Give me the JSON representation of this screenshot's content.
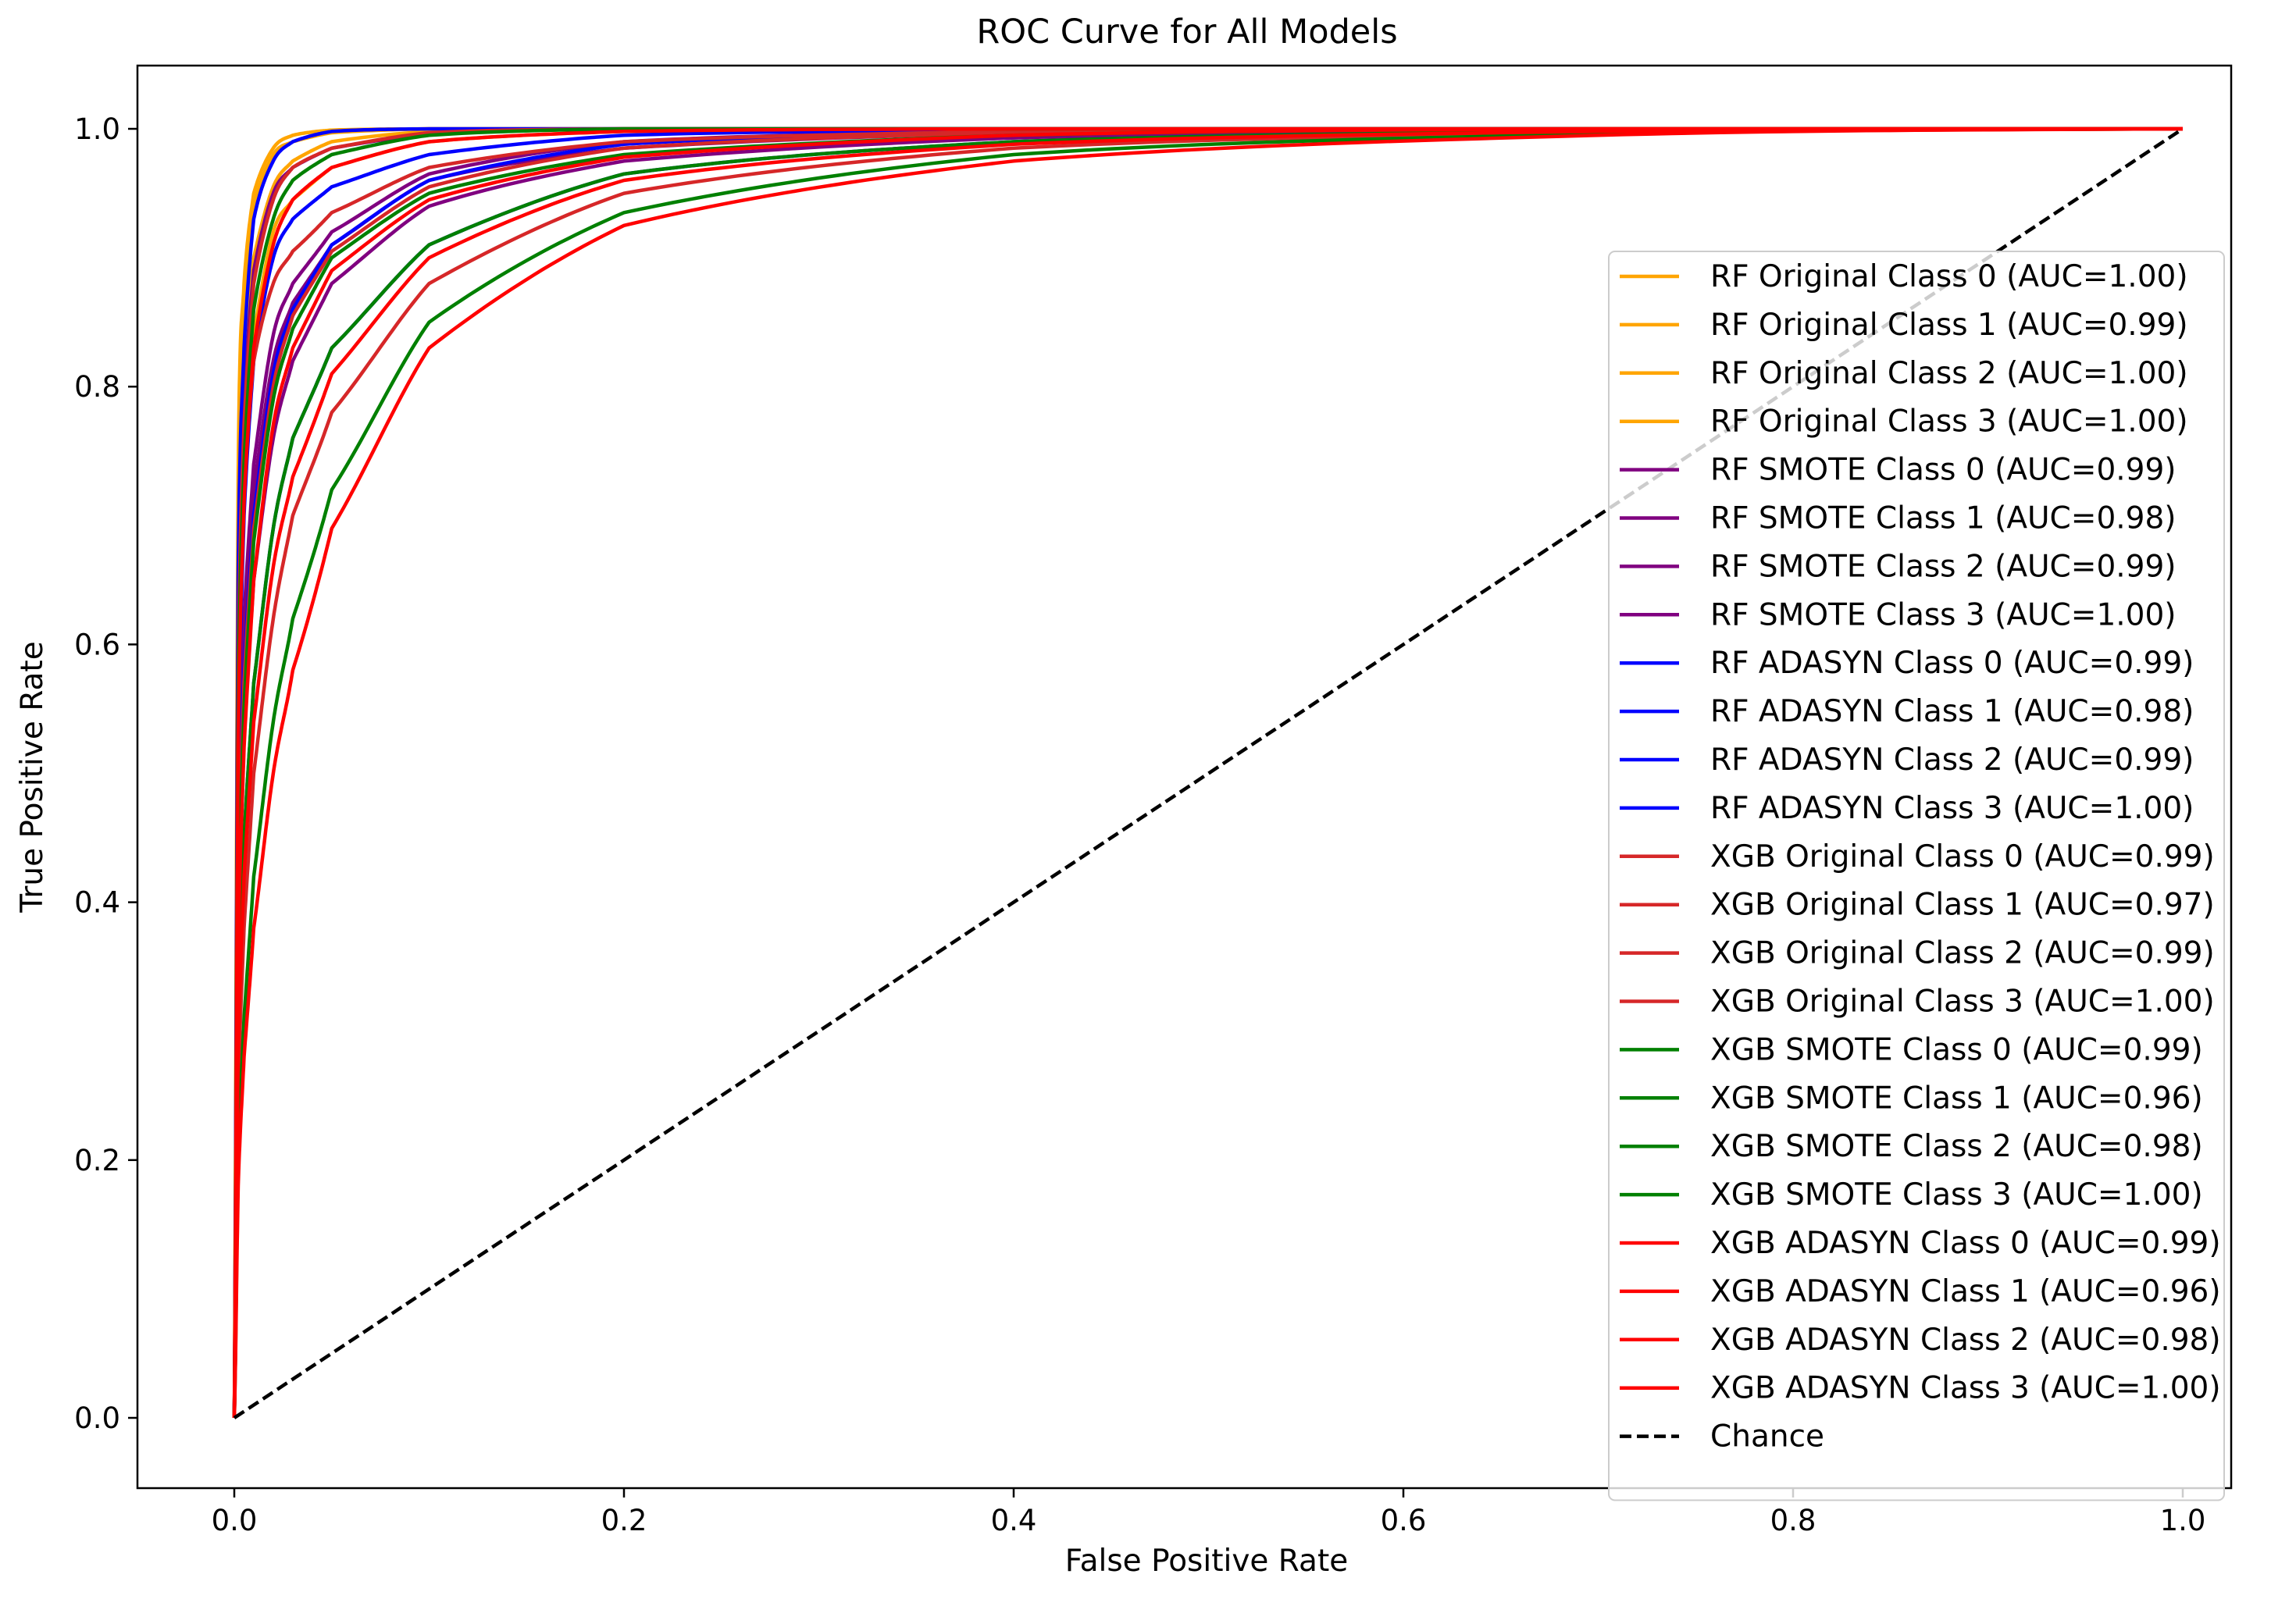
{
  "chart_data": {
    "type": "line",
    "title": "ROC Curve for All Models",
    "xlabel": "False Positive Rate",
    "ylabel": "True Positive Rate",
    "xlim": [
      -0.05,
      1.05
    ],
    "ylim": [
      -0.05,
      1.05
    ],
    "xticks": [
      0.0,
      0.2,
      0.4,
      0.6,
      0.8,
      1.0
    ],
    "yticks": [
      0.0,
      0.2,
      0.4,
      0.6,
      0.8,
      1.0
    ],
    "xtick_labels": [
      "0.0",
      "0.2",
      "0.4",
      "0.6",
      "0.8",
      "1.0"
    ],
    "ytick_labels": [
      "0.0",
      "0.2",
      "0.4",
      "0.6",
      "0.8",
      "1.0"
    ],
    "grid": false,
    "legend_position": "right",
    "series": [
      {
        "name": "RF Original Class 0 (AUC=1.00)",
        "color": "#ffa500",
        "x": [
          0,
          0.002,
          0.005,
          0.01,
          0.02,
          0.03,
          0.05,
          0.1,
          0.2,
          0.4,
          0.7,
          1.0
        ],
        "y": [
          0,
          0.73,
          0.88,
          0.95,
          0.985,
          0.995,
          0.999,
          1.0,
          1.0,
          1.0,
          1.0,
          1.0
        ]
      },
      {
        "name": "RF Original Class 1 (AUC=0.99)",
        "color": "#ffa500",
        "x": [
          0,
          0.002,
          0.005,
          0.01,
          0.02,
          0.03,
          0.05,
          0.1,
          0.2,
          0.4,
          0.7,
          1.0
        ],
        "y": [
          0,
          0.58,
          0.74,
          0.84,
          0.92,
          0.945,
          0.97,
          0.99,
          0.998,
          1.0,
          1.0,
          1.0
        ]
      },
      {
        "name": "RF Original Class 2 (AUC=1.00)",
        "color": "#ffa500",
        "x": [
          0,
          0.002,
          0.005,
          0.01,
          0.02,
          0.03,
          0.05,
          0.1,
          0.2,
          0.4,
          0.7,
          1.0
        ],
        "y": [
          0,
          0.67,
          0.82,
          0.9,
          0.955,
          0.975,
          0.99,
          0.998,
          1.0,
          1.0,
          1.0,
          1.0
        ]
      },
      {
        "name": "RF Original Class 3 (AUC=1.00)",
        "color": "#ffa500",
        "x": [
          0,
          0.002,
          0.005,
          0.01,
          0.02,
          0.03,
          0.05,
          0.1,
          0.2,
          0.4,
          0.7,
          1.0
        ],
        "y": [
          0,
          0.7,
          0.86,
          0.94,
          0.98,
          0.99,
          0.997,
          1.0,
          1.0,
          1.0,
          1.0,
          1.0
        ]
      },
      {
        "name": "RF SMOTE Class 0 (AUC=0.99)",
        "color": "#800080",
        "x": [
          0,
          0.002,
          0.005,
          0.01,
          0.02,
          0.03,
          0.05,
          0.1,
          0.2,
          0.4,
          0.7,
          1.0
        ],
        "y": [
          0,
          0.45,
          0.62,
          0.74,
          0.84,
          0.88,
          0.92,
          0.965,
          0.99,
          0.998,
          1.0,
          1.0
        ]
      },
      {
        "name": "RF SMOTE Class 1 (AUC=0.98)",
        "color": "#800080",
        "x": [
          0,
          0.002,
          0.005,
          0.01,
          0.02,
          0.03,
          0.05,
          0.1,
          0.2,
          0.4,
          0.7,
          1.0
        ],
        "y": [
          0,
          0.38,
          0.53,
          0.65,
          0.76,
          0.82,
          0.88,
          0.94,
          0.975,
          0.993,
          0.999,
          1.0
        ]
      },
      {
        "name": "RF SMOTE Class 2 (AUC=0.99)",
        "color": "#800080",
        "x": [
          0,
          0.002,
          0.005,
          0.01,
          0.02,
          0.03,
          0.05,
          0.1,
          0.2,
          0.4,
          0.7,
          1.0
        ],
        "y": [
          0,
          0.44,
          0.6,
          0.72,
          0.82,
          0.865,
          0.91,
          0.96,
          0.985,
          0.997,
          1.0,
          1.0
        ]
      },
      {
        "name": "RF SMOTE Class 3 (AUC=1.00)",
        "color": "#800080",
        "x": [
          0,
          0.002,
          0.005,
          0.01,
          0.02,
          0.03,
          0.05,
          0.1,
          0.2,
          0.4,
          0.7,
          1.0
        ],
        "y": [
          0,
          0.62,
          0.79,
          0.89,
          0.95,
          0.97,
          0.985,
          0.996,
          1.0,
          1.0,
          1.0,
          1.0
        ]
      },
      {
        "name": "RF ADASYN Class 0 (AUC=0.99)",
        "color": "#0000ff",
        "x": [
          0,
          0.002,
          0.005,
          0.01,
          0.02,
          0.03,
          0.05,
          0.1,
          0.2,
          0.4,
          0.7,
          1.0
        ],
        "y": [
          0,
          0.5,
          0.7,
          0.82,
          0.9,
          0.93,
          0.955,
          0.98,
          0.995,
          0.999,
          1.0,
          1.0
        ]
      },
      {
        "name": "RF ADASYN Class 1 (AUC=0.98)",
        "color": "#0000ff",
        "x": [
          0,
          0.002,
          0.005,
          0.01,
          0.02,
          0.03,
          0.05,
          0.1,
          0.2,
          0.4,
          0.7,
          1.0
        ],
        "y": [
          0,
          0.3,
          0.45,
          0.57,
          0.69,
          0.76,
          0.83,
          0.91,
          0.965,
          0.99,
          0.998,
          1.0
        ]
      },
      {
        "name": "RF ADASYN Class 2 (AUC=0.99)",
        "color": "#0000ff",
        "x": [
          0,
          0.002,
          0.005,
          0.01,
          0.02,
          0.03,
          0.05,
          0.1,
          0.2,
          0.4,
          0.7,
          1.0
        ],
        "y": [
          0,
          0.42,
          0.58,
          0.7,
          0.81,
          0.86,
          0.91,
          0.96,
          0.988,
          0.998,
          1.0,
          1.0
        ]
      },
      {
        "name": "RF ADASYN Class 3 (AUC=1.00)",
        "color": "#0000ff",
        "x": [
          0,
          0.002,
          0.005,
          0.01,
          0.02,
          0.03,
          0.05,
          0.1,
          0.2,
          0.4,
          0.7,
          1.0
        ],
        "y": [
          0,
          0.65,
          0.83,
          0.93,
          0.975,
          0.99,
          0.998,
          1.0,
          1.0,
          1.0,
          1.0,
          1.0
        ]
      },
      {
        "name": "XGB Original Class 0 (AUC=0.99)",
        "color": "#d62728",
        "x": [
          0,
          0.002,
          0.005,
          0.01,
          0.02,
          0.03,
          0.05,
          0.1,
          0.2,
          0.4,
          0.7,
          1.0
        ],
        "y": [
          0,
          0.55,
          0.72,
          0.82,
          0.88,
          0.905,
          0.935,
          0.97,
          0.99,
          0.998,
          1.0,
          1.0
        ]
      },
      {
        "name": "XGB Original Class 1 (AUC=0.97)",
        "color": "#d62728",
        "x": [
          0,
          0.002,
          0.005,
          0.01,
          0.02,
          0.03,
          0.05,
          0.1,
          0.2,
          0.4,
          0.7,
          1.0
        ],
        "y": [
          0,
          0.25,
          0.38,
          0.5,
          0.62,
          0.7,
          0.78,
          0.88,
          0.95,
          0.985,
          0.997,
          1.0
        ]
      },
      {
        "name": "XGB Original Class 2 (AUC=0.99)",
        "color": "#d62728",
        "x": [
          0,
          0.002,
          0.005,
          0.01,
          0.02,
          0.03,
          0.05,
          0.1,
          0.2,
          0.4,
          0.7,
          1.0
        ],
        "y": [
          0,
          0.4,
          0.57,
          0.69,
          0.8,
          0.855,
          0.905,
          0.955,
          0.985,
          0.997,
          1.0,
          1.0
        ]
      },
      {
        "name": "XGB Original Class 3 (AUC=1.00)",
        "color": "#d62728",
        "x": [
          0,
          0.002,
          0.005,
          0.01,
          0.02,
          0.03,
          0.05,
          0.1,
          0.2,
          0.4,
          0.7,
          1.0
        ],
        "y": [
          0,
          0.58,
          0.77,
          0.88,
          0.945,
          0.97,
          0.985,
          0.997,
          1.0,
          1.0,
          1.0,
          1.0
        ]
      },
      {
        "name": "XGB SMOTE Class 0 (AUC=0.99)",
        "color": "#008000",
        "x": [
          0,
          0.002,
          0.005,
          0.01,
          0.02,
          0.03,
          0.05,
          0.1,
          0.2,
          0.4,
          0.7,
          1.0
        ],
        "y": [
          0,
          0.38,
          0.55,
          0.68,
          0.79,
          0.845,
          0.9,
          0.95,
          0.98,
          0.995,
          1.0,
          1.0
        ]
      },
      {
        "name": "XGB SMOTE Class 1 (AUC=0.96)",
        "color": "#008000",
        "x": [
          0,
          0.002,
          0.005,
          0.01,
          0.02,
          0.03,
          0.05,
          0.1,
          0.2,
          0.4,
          0.7,
          1.0
        ],
        "y": [
          0,
          0.2,
          0.31,
          0.42,
          0.54,
          0.62,
          0.72,
          0.85,
          0.935,
          0.98,
          0.996,
          1.0
        ]
      },
      {
        "name": "XGB SMOTE Class 2 (AUC=0.98)",
        "color": "#008000",
        "x": [
          0,
          0.002,
          0.005,
          0.01,
          0.02,
          0.03,
          0.05,
          0.1,
          0.2,
          0.4,
          0.7,
          1.0
        ],
        "y": [
          0,
          0.3,
          0.45,
          0.57,
          0.69,
          0.76,
          0.83,
          0.91,
          0.965,
          0.99,
          0.998,
          1.0
        ]
      },
      {
        "name": "XGB SMOTE Class 3 (AUC=1.00)",
        "color": "#008000",
        "x": [
          0,
          0.002,
          0.005,
          0.01,
          0.02,
          0.03,
          0.05,
          0.1,
          0.2,
          0.4,
          0.7,
          1.0
        ],
        "y": [
          0,
          0.55,
          0.74,
          0.86,
          0.93,
          0.96,
          0.98,
          0.995,
          1.0,
          1.0,
          1.0,
          1.0
        ]
      },
      {
        "name": "XGB ADASYN Class 0 (AUC=0.99)",
        "color": "#ff0000",
        "x": [
          0,
          0.002,
          0.005,
          0.01,
          0.02,
          0.03,
          0.05,
          0.1,
          0.2,
          0.4,
          0.7,
          1.0
        ],
        "y": [
          0,
          0.36,
          0.52,
          0.65,
          0.77,
          0.83,
          0.89,
          0.945,
          0.978,
          0.995,
          1.0,
          1.0
        ]
      },
      {
        "name": "XGB ADASYN Class 1 (AUC=0.96)",
        "color": "#ff0000",
        "x": [
          0,
          0.002,
          0.005,
          0.01,
          0.02,
          0.03,
          0.05,
          0.1,
          0.2,
          0.4,
          0.7,
          1.0
        ],
        "y": [
          0,
          0.18,
          0.28,
          0.38,
          0.5,
          0.58,
          0.69,
          0.83,
          0.925,
          0.975,
          0.995,
          1.0
        ]
      },
      {
        "name": "XGB ADASYN Class 2 (AUC=0.98)",
        "color": "#ff0000",
        "x": [
          0,
          0.002,
          0.005,
          0.01,
          0.02,
          0.03,
          0.05,
          0.1,
          0.2,
          0.4,
          0.7,
          1.0
        ],
        "y": [
          0,
          0.28,
          0.42,
          0.54,
          0.66,
          0.73,
          0.81,
          0.9,
          0.96,
          0.988,
          0.998,
          1.0
        ]
      },
      {
        "name": "XGB ADASYN Class 3 (AUC=1.00)",
        "color": "#ff0000",
        "x": [
          0,
          0.002,
          0.005,
          0.01,
          0.02,
          0.03,
          0.05,
          0.1,
          0.2,
          0.4,
          0.7,
          1.0
        ],
        "y": [
          0,
          0.52,
          0.71,
          0.83,
          0.91,
          0.945,
          0.97,
          0.99,
          0.998,
          1.0,
          1.0,
          1.0
        ]
      },
      {
        "name": "Chance",
        "color": "#000000",
        "dashed": true,
        "x": [
          0,
          1
        ],
        "y": [
          0,
          1
        ]
      }
    ]
  }
}
